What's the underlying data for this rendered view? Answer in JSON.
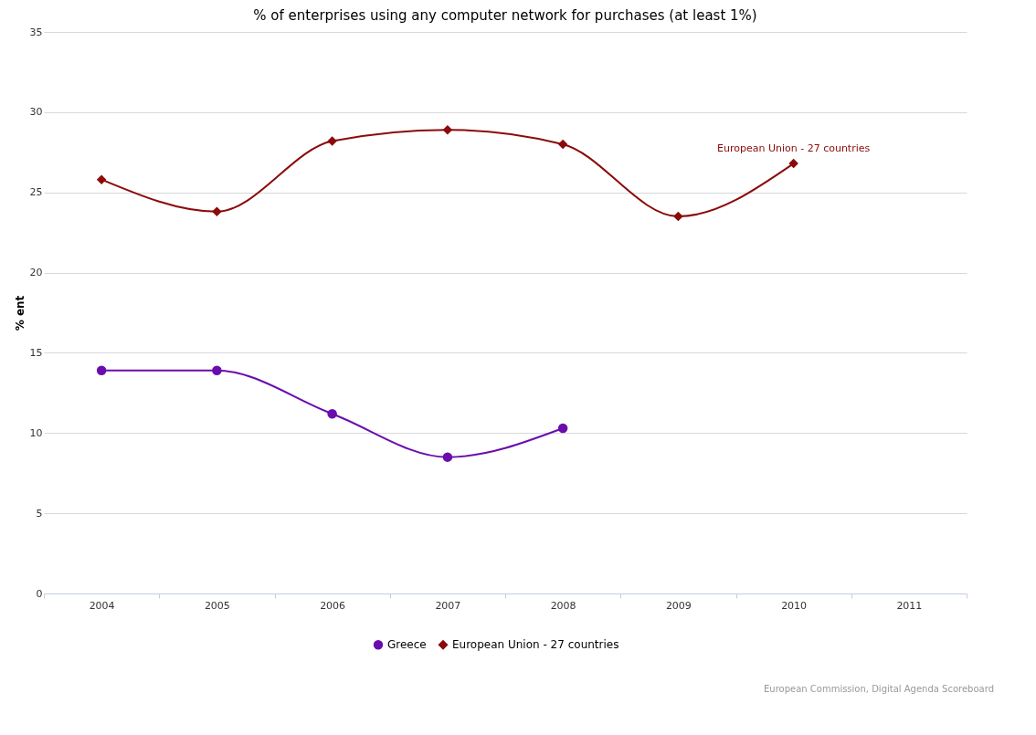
{
  "chart_data": {
    "type": "line",
    "title": "% of enterprises using any computer network for purchases (at least 1%)",
    "ylabel": "% ent",
    "categories": [
      "2004",
      "2005",
      "2006",
      "2007",
      "2008",
      "2009",
      "2010",
      "2011"
    ],
    "series": [
      {
        "name": "Greece",
        "color": "#6a0dad",
        "marker": "circle",
        "values": [
          13.9,
          13.9,
          11.2,
          8.5,
          10.3,
          null,
          null,
          null
        ]
      },
      {
        "name": "European Union - 27 countries",
        "color": "#8b0a0a",
        "marker": "diamond",
        "values": [
          25.8,
          23.8,
          28.2,
          28.9,
          28.0,
          23.5,
          26.8,
          null
        ]
      }
    ],
    "ylim": [
      0,
      35
    ],
    "yticks": [
      0,
      5,
      10,
      15,
      20,
      25,
      30,
      35
    ],
    "grid": "y",
    "legend": "bottom",
    "line_style": "solid",
    "annotations": [
      {
        "text": "European Union - 27 countries",
        "x": "2010",
        "y": 26.8
      },
      "European Commission, Digital Agenda Scoreboard"
    ]
  }
}
